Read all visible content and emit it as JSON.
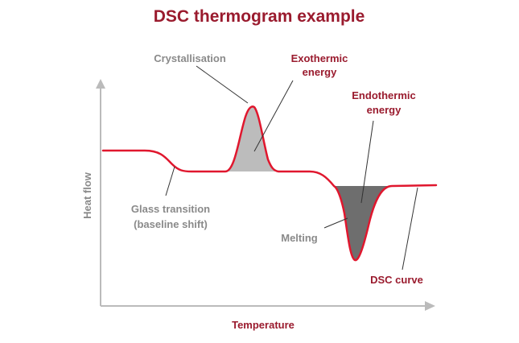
{
  "diagram": {
    "title": "DSC thermogram example",
    "x_axis_label": "Temperature",
    "y_axis_label": "Heat flow",
    "labels": {
      "crystallisation": "Crystallisation",
      "exothermic_line1": "Exothermic",
      "exothermic_line2": "energy",
      "endothermic_line1": "Endothermic",
      "endothermic_line2": "energy",
      "glass_line1": "Glass transition",
      "glass_line2": "(baseline shift)",
      "melting": "Melting",
      "dsc_curve": "DSC curve"
    },
    "colors": {
      "curve": "#e0172e",
      "title": "#9a1b2e",
      "axis": "#bbbbbb",
      "exothermic_fill": "#bcbcbc",
      "endothermic_fill": "#6e6e6e",
      "annotation_line": "#333333"
    }
  }
}
